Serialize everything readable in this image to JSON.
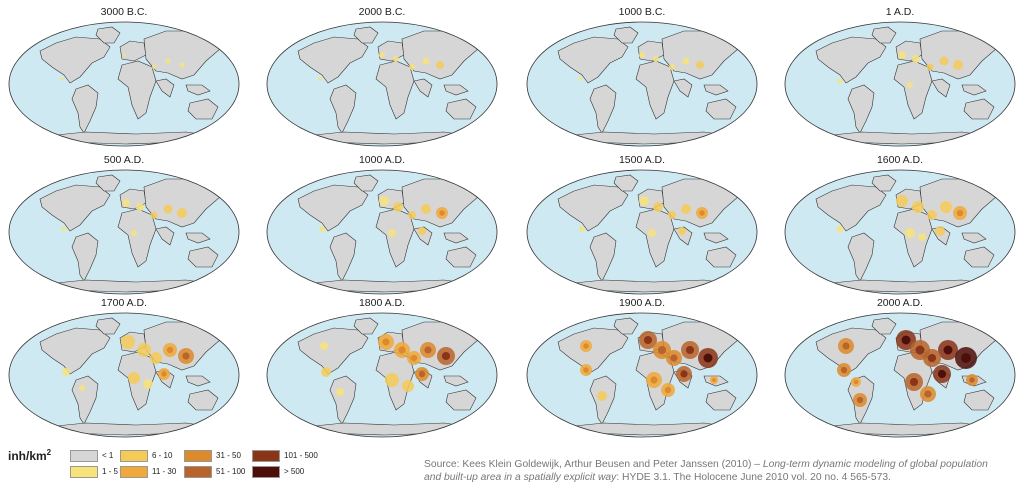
{
  "maps": [
    {
      "label": "3000 B.C.",
      "level": 0
    },
    {
      "label": "2000 B.C.",
      "level": 1
    },
    {
      "label": "1000 B.C.",
      "level": 1
    },
    {
      "label": "1 A.D.",
      "level": 2
    },
    {
      "label": "500 A.D.",
      "level": 2
    },
    {
      "label": "1000 A.D.",
      "level": 3
    },
    {
      "label": "1500 A.D.",
      "level": 3
    },
    {
      "label": "1600 A.D.",
      "level": 4
    },
    {
      "label": "1700 A.D.",
      "level": 5
    },
    {
      "label": "1800 A.D.",
      "level": 6
    },
    {
      "label": "1900 A.D.",
      "level": 7
    },
    {
      "label": "2000 A.D.",
      "level": 8
    }
  ],
  "legend": {
    "unit": "inh/km",
    "unit_sup": "2",
    "items": [
      {
        "label": "< 1",
        "color": "#d6d6d6"
      },
      {
        "label": "1 - 5",
        "color": "#f7e37a"
      },
      {
        "label": "6 - 10",
        "color": "#f5cb57"
      },
      {
        "label": "11 - 30",
        "color": "#f0a83a"
      },
      {
        "label": "31 - 50",
        "color": "#dd8a2c"
      },
      {
        "label": "51 - 100",
        "color": "#b8642a"
      },
      {
        "label": "101 - 500",
        "color": "#8a3418"
      },
      {
        "label": "> 500",
        "color": "#4e0f0a"
      }
    ]
  },
  "source": {
    "line1_plain": "Source: Kees Klein Goldewijk, Arthur Beusen and Peter Janssen (2010) – ",
    "line1_italic": "Long-term dynamic modeling of global population",
    "line2_italic": "and built-up area in a spatially explicit way",
    "line2_plain": ": HYDE 3.1. The Holocene June 2010 vol. 20 no. 4 565-573."
  },
  "colors": {
    "ocean": "#cfe9f2",
    "land": "#d6d6d6",
    "outline": "#333333"
  }
}
